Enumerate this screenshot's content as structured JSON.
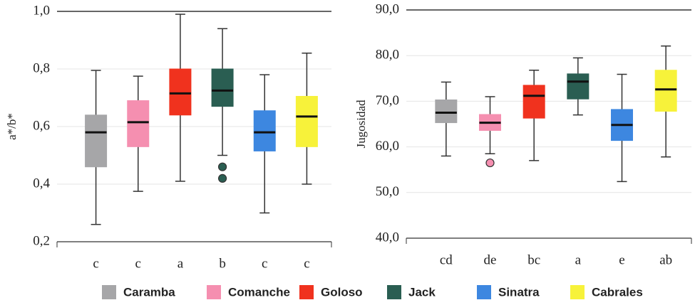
{
  "chart_data": [
    {
      "type": "box",
      "ylabel": "a*/b*",
      "ylim": [
        0.2,
        1.0
      ],
      "yticks": [
        {
          "value": 0.2,
          "label": "0,2"
        },
        {
          "value": 0.4,
          "label": "0,4"
        },
        {
          "value": 0.6,
          "label": "0,6"
        },
        {
          "value": 0.8,
          "label": "0,8"
        },
        {
          "value": 1.0,
          "label": "1,0"
        }
      ],
      "categories": [
        "c",
        "c",
        "a",
        "b",
        "c",
        "c"
      ],
      "boxes": [
        {
          "name": "Caramba",
          "color": "#a6a6a8",
          "min": 0.26,
          "q1": 0.46,
          "median": 0.58,
          "q3": 0.64,
          "max": 0.795,
          "outliers": []
        },
        {
          "name": "Comanche",
          "color": "#f58fb0",
          "min": 0.375,
          "q1": 0.53,
          "median": 0.615,
          "q3": 0.69,
          "max": 0.775,
          "outliers": []
        },
        {
          "name": "Goloso",
          "color": "#f0321e",
          "min": 0.41,
          "q1": 0.64,
          "median": 0.715,
          "q3": 0.8,
          "max": 0.99,
          "outliers": []
        },
        {
          "name": "Jack",
          "color": "#2a5e52",
          "min": 0.5,
          "q1": 0.67,
          "median": 0.725,
          "q3": 0.8,
          "max": 0.94,
          "outliers": [
            0.46,
            0.42
          ]
        },
        {
          "name": "Sinatra",
          "color": "#3d87e0",
          "min": 0.3,
          "q1": 0.515,
          "median": 0.58,
          "q3": 0.655,
          "max": 0.78,
          "outliers": []
        },
        {
          "name": "Cabrales",
          "color": "#f7f23a",
          "min": 0.4,
          "q1": 0.53,
          "median": 0.635,
          "q3": 0.705,
          "max": 0.855,
          "outliers": []
        }
      ]
    },
    {
      "type": "box",
      "ylabel": "Jugosidad",
      "ylim": [
        40,
        90
      ],
      "yticks": [
        {
          "value": 40,
          "label": "40,0"
        },
        {
          "value": 50,
          "label": "50,0"
        },
        {
          "value": 60,
          "label": "60,0"
        },
        {
          "value": 70,
          "label": "70,0"
        },
        {
          "value": 80,
          "label": "80,0"
        },
        {
          "value": 90,
          "label": "90,0"
        }
      ],
      "categories": [
        "cd",
        "de",
        "bc",
        "a",
        "e",
        "ab"
      ],
      "boxes": [
        {
          "color": "#a6a6a8",
          "min": 58,
          "q1": 65.3,
          "median": 67.5,
          "q3": 70.3,
          "max": 74.2,
          "outliers": []
        },
        {
          "color": "#f58fb0",
          "min": 58.5,
          "q1": 63.6,
          "median": 65.3,
          "q3": 67.1,
          "max": 71,
          "outliers": [
            56.5
          ]
        },
        {
          "color": "#f0321e",
          "min": 57,
          "q1": 66.3,
          "median": 71.2,
          "q3": 73.5,
          "max": 76.8,
          "outliers": []
        },
        {
          "color": "#2a5e52",
          "min": 67,
          "q1": 70.5,
          "median": 74.3,
          "q3": 76,
          "max": 79.5,
          "outliers": []
        },
        {
          "color": "#3d87e0",
          "min": 52.4,
          "q1": 61.4,
          "median": 64.8,
          "q3": 68.2,
          "max": 75.9,
          "outliers": []
        },
        {
          "color": "#f7f23a",
          "min": 57.8,
          "q1": 67.8,
          "median": 72.6,
          "q3": 76.8,
          "max": 82.1,
          "outliers": []
        }
      ]
    }
  ]
}
